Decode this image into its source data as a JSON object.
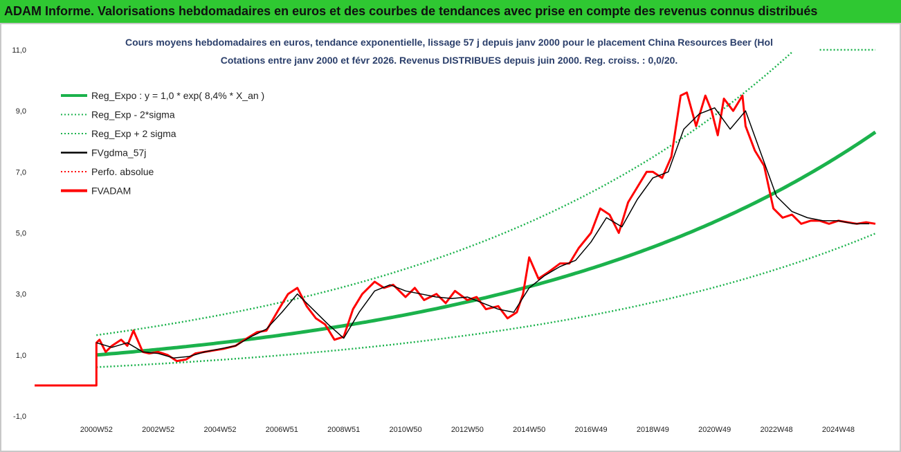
{
  "banner": {
    "title": "ADAM Informe. Valorisations hebdomadaires en euros et des courbes de tendances avec prise en compte des revenus connus distribués"
  },
  "colors": {
    "banner": "#2fc832",
    "reg": "#1bb24c",
    "fv": "#ff0000",
    "gdma": "#000000",
    "title_text": "#2b3f6b"
  },
  "chart_data": {
    "type": "line",
    "title_line1": "Cours moyens hebdomadaires en euros, tendance exponentielle, lissage 57 j depuis janv 2000  pour le placement China Resources Beer (Hol",
    "title_line2": "Cotations entre janv 2000 et févr 2026. Revenus DISTRIBUES depuis juin 2000.  Reg. croiss. : 0,0/20.",
    "xlabel": "",
    "ylabel": "",
    "ylim": [
      -1,
      11
    ],
    "yticks": [
      "-1,0",
      "1,0",
      "3,0",
      "5,0",
      "7,0",
      "9,0",
      "11,0"
    ],
    "ytick_values": [
      -1,
      1,
      3,
      5,
      7,
      9,
      11
    ],
    "xlim": [
      1999.0,
      2026.2
    ],
    "xticks": [
      "2000W52",
      "2002W52",
      "2004W52",
      "2006W51",
      "2008W51",
      "2010W50",
      "2012W50",
      "2014W50",
      "2016W49",
      "2018W49",
      "2020W49",
      "2022W48",
      "2024W48"
    ],
    "xtick_values": [
      2001,
      2003,
      2005,
      2007,
      2009,
      2011,
      2013,
      2015,
      2017,
      2019,
      2021,
      2023,
      2025
    ],
    "grid": false,
    "legend_position": "top-left",
    "legend": [
      {
        "label": "Reg_Expo : y = 1,0 * exp( 8,4% *  X_an )",
        "style": "solid-thick",
        "color": "#1bb24c"
      },
      {
        "label": "Reg_Exp - 2*sigma",
        "style": "dotted",
        "color": "#1bb24c"
      },
      {
        "label": "Reg_Exp + 2 sigma",
        "style": "dotted",
        "color": "#1bb24c"
      },
      {
        "label": "FVgdma_57j",
        "style": "solid",
        "color": "#000000"
      },
      {
        "label": "Perfo. absolue",
        "style": "dotted",
        "color": "#ff0000"
      },
      {
        "label": "FVADAM",
        "style": "solid-thick",
        "color": "#ff0000"
      }
    ],
    "regression": {
      "a": 1.0,
      "rate": 0.084,
      "start": 2001.0,
      "end": 2026.2,
      "upper_factor": 1.65,
      "lower_factor": 0.6
    },
    "upper_band_extra": {
      "x": [
        2024.4,
        2026.2
      ],
      "y": [
        11.0,
        11.0
      ]
    },
    "series": [
      {
        "name": "FVADAM",
        "x": [
          1999.0,
          2001.0,
          2001.0,
          2001.1,
          2001.3,
          2001.5,
          2001.8,
          2002.0,
          2002.2,
          2002.5,
          2002.7,
          2003.0,
          2003.3,
          2003.6,
          2003.9,
          2004.2,
          2004.5,
          2004.8,
          2005.1,
          2005.5,
          2005.8,
          2006.2,
          2006.5,
          2006.9,
          2007.2,
          2007.5,
          2007.8,
          2008.1,
          2008.4,
          2008.7,
          2009.0,
          2009.3,
          2009.6,
          2010.0,
          2010.3,
          2010.6,
          2011.0,
          2011.3,
          2011.6,
          2012.0,
          2012.3,
          2012.6,
          2013.0,
          2013.3,
          2013.6,
          2014.0,
          2014.3,
          2014.6,
          2014.8,
          2015.0,
          2015.3,
          2015.6,
          2016.0,
          2016.3,
          2016.6,
          2017.0,
          2017.3,
          2017.6,
          2017.9,
          2018.2,
          2018.5,
          2018.8,
          2019.0,
          2019.3,
          2019.6,
          2019.9,
          2020.1,
          2020.4,
          2020.7,
          2020.9,
          2021.1,
          2021.3,
          2021.6,
          2021.9,
          2022.0,
          2022.3,
          2022.6,
          2022.9,
          2023.2,
          2023.5,
          2023.8,
          2024.1,
          2024.4,
          2024.7,
          2025.0,
          2025.3,
          2025.6,
          2025.9,
          2026.2
        ],
        "y": [
          0.0,
          0.0,
          1.4,
          1.5,
          1.1,
          1.3,
          1.5,
          1.3,
          1.8,
          1.1,
          1.05,
          1.1,
          1.0,
          0.8,
          0.85,
          1.05,
          1.1,
          1.15,
          1.2,
          1.3,
          1.5,
          1.75,
          1.8,
          2.5,
          3.0,
          3.2,
          2.6,
          2.2,
          2.0,
          1.5,
          1.6,
          2.5,
          3.0,
          3.4,
          3.2,
          3.3,
          2.9,
          3.2,
          2.8,
          3.0,
          2.7,
          3.1,
          2.8,
          2.9,
          2.5,
          2.6,
          2.2,
          2.4,
          3.0,
          4.2,
          3.5,
          3.7,
          4.0,
          4.0,
          4.5,
          5.0,
          5.8,
          5.6,
          5.0,
          6.0,
          6.5,
          7.0,
          7.0,
          6.8,
          7.5,
          9.5,
          9.6,
          8.5,
          9.5,
          9.0,
          8.2,
          9.4,
          9.0,
          9.5,
          8.5,
          7.7,
          7.2,
          5.8,
          5.5,
          5.6,
          5.3,
          5.4,
          5.4,
          5.3,
          5.4,
          5.35,
          5.3,
          5.35,
          5.3
        ]
      },
      {
        "name": "FVgdma_57j",
        "x": [
          2001.0,
          2001.5,
          2002.0,
          2002.5,
          2003.0,
          2003.5,
          2004.0,
          2004.5,
          2005.0,
          2005.5,
          2006.0,
          2006.5,
          2007.0,
          2007.5,
          2008.0,
          2008.5,
          2009.0,
          2009.5,
          2010.0,
          2010.5,
          2011.0,
          2011.5,
          2012.0,
          2012.5,
          2013.0,
          2013.5,
          2014.0,
          2014.5,
          2015.0,
          2015.5,
          2016.0,
          2016.5,
          2017.0,
          2017.5,
          2018.0,
          2018.5,
          2019.0,
          2019.5,
          2020.0,
          2020.5,
          2021.0,
          2021.5,
          2022.0,
          2022.5,
          2023.0,
          2023.5,
          2024.0,
          2024.5,
          2025.0,
          2025.5,
          2026.0
        ],
        "y": [
          1.4,
          1.25,
          1.4,
          1.1,
          1.05,
          0.9,
          0.95,
          1.1,
          1.2,
          1.3,
          1.6,
          1.85,
          2.4,
          3.0,
          2.5,
          2.0,
          1.55,
          2.4,
          3.1,
          3.3,
          3.1,
          3.0,
          2.9,
          2.85,
          2.9,
          2.7,
          2.5,
          2.4,
          3.2,
          3.6,
          3.9,
          4.1,
          4.7,
          5.5,
          5.2,
          6.1,
          6.8,
          7.0,
          8.4,
          8.9,
          9.1,
          8.4,
          9.0,
          7.6,
          6.2,
          5.7,
          5.5,
          5.4,
          5.4,
          5.3,
          5.3
        ]
      }
    ]
  }
}
